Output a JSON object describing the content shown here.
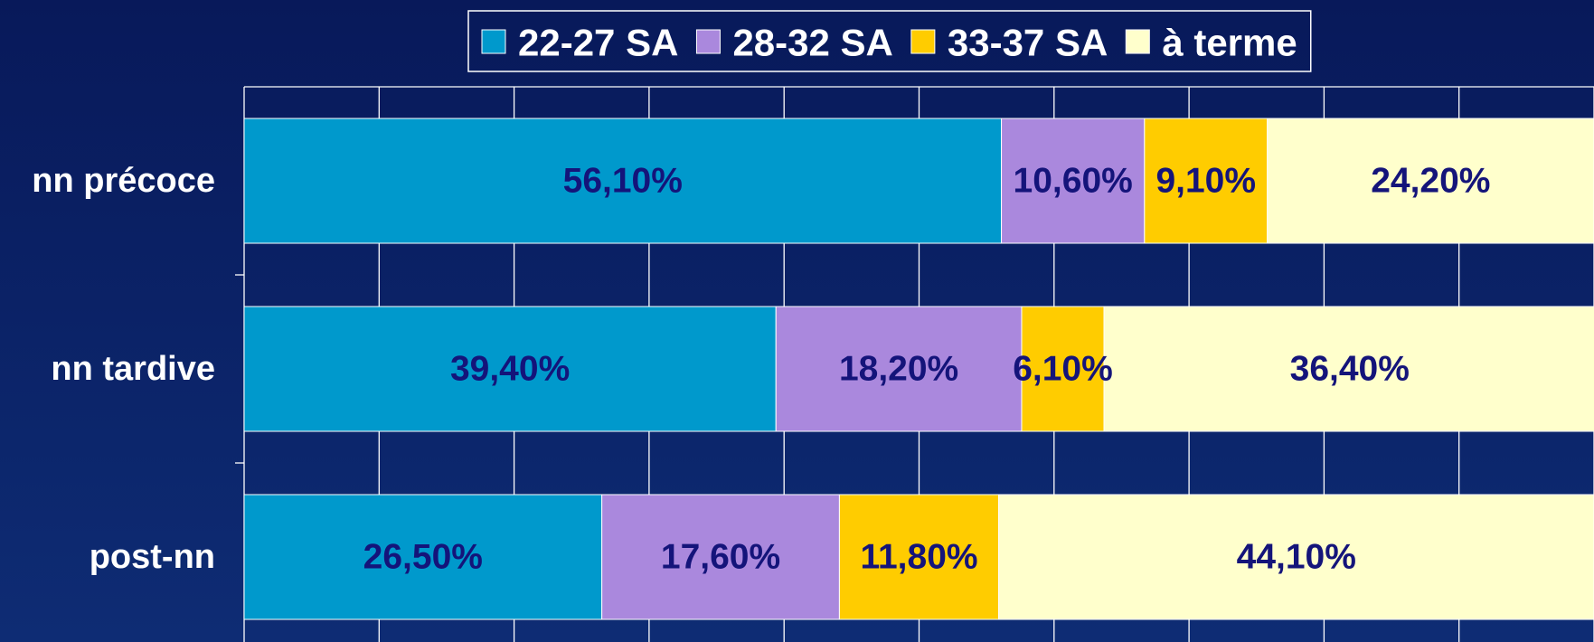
{
  "chart_data": {
    "type": "stacked-barh",
    "categories": [
      "nn précoce",
      "nn tardive",
      "post-nn"
    ],
    "series": [
      {
        "name": "22-27 SA",
        "color": "#0099cc",
        "values": [
          56.1,
          39.4,
          26.5
        ],
        "value_labels": [
          "56,10%",
          "39,40%",
          "26,50%"
        ]
      },
      {
        "name": "28-32 SA",
        "color": "#aa88dd",
        "values": [
          10.6,
          18.2,
          17.6
        ],
        "value_labels": [
          "10,60%",
          "18,20%",
          "17,60%"
        ]
      },
      {
        "name": "33-37 SA",
        "color": "#ffcc00",
        "values": [
          9.1,
          6.1,
          11.8
        ],
        "value_labels": [
          "9,10%",
          "6,10%",
          "11,80%"
        ]
      },
      {
        "name": "à terme",
        "color": "#ffffcc",
        "values": [
          24.2,
          36.4,
          44.1
        ],
        "value_labels": [
          "24,20%",
          "36,40%",
          "44,10%"
        ]
      }
    ],
    "xlim": [
      0,
      100
    ],
    "xticks": [
      0,
      10,
      20,
      30,
      40,
      50,
      60,
      70,
      80,
      90,
      100
    ],
    "grid": true,
    "legend": "top"
  }
}
